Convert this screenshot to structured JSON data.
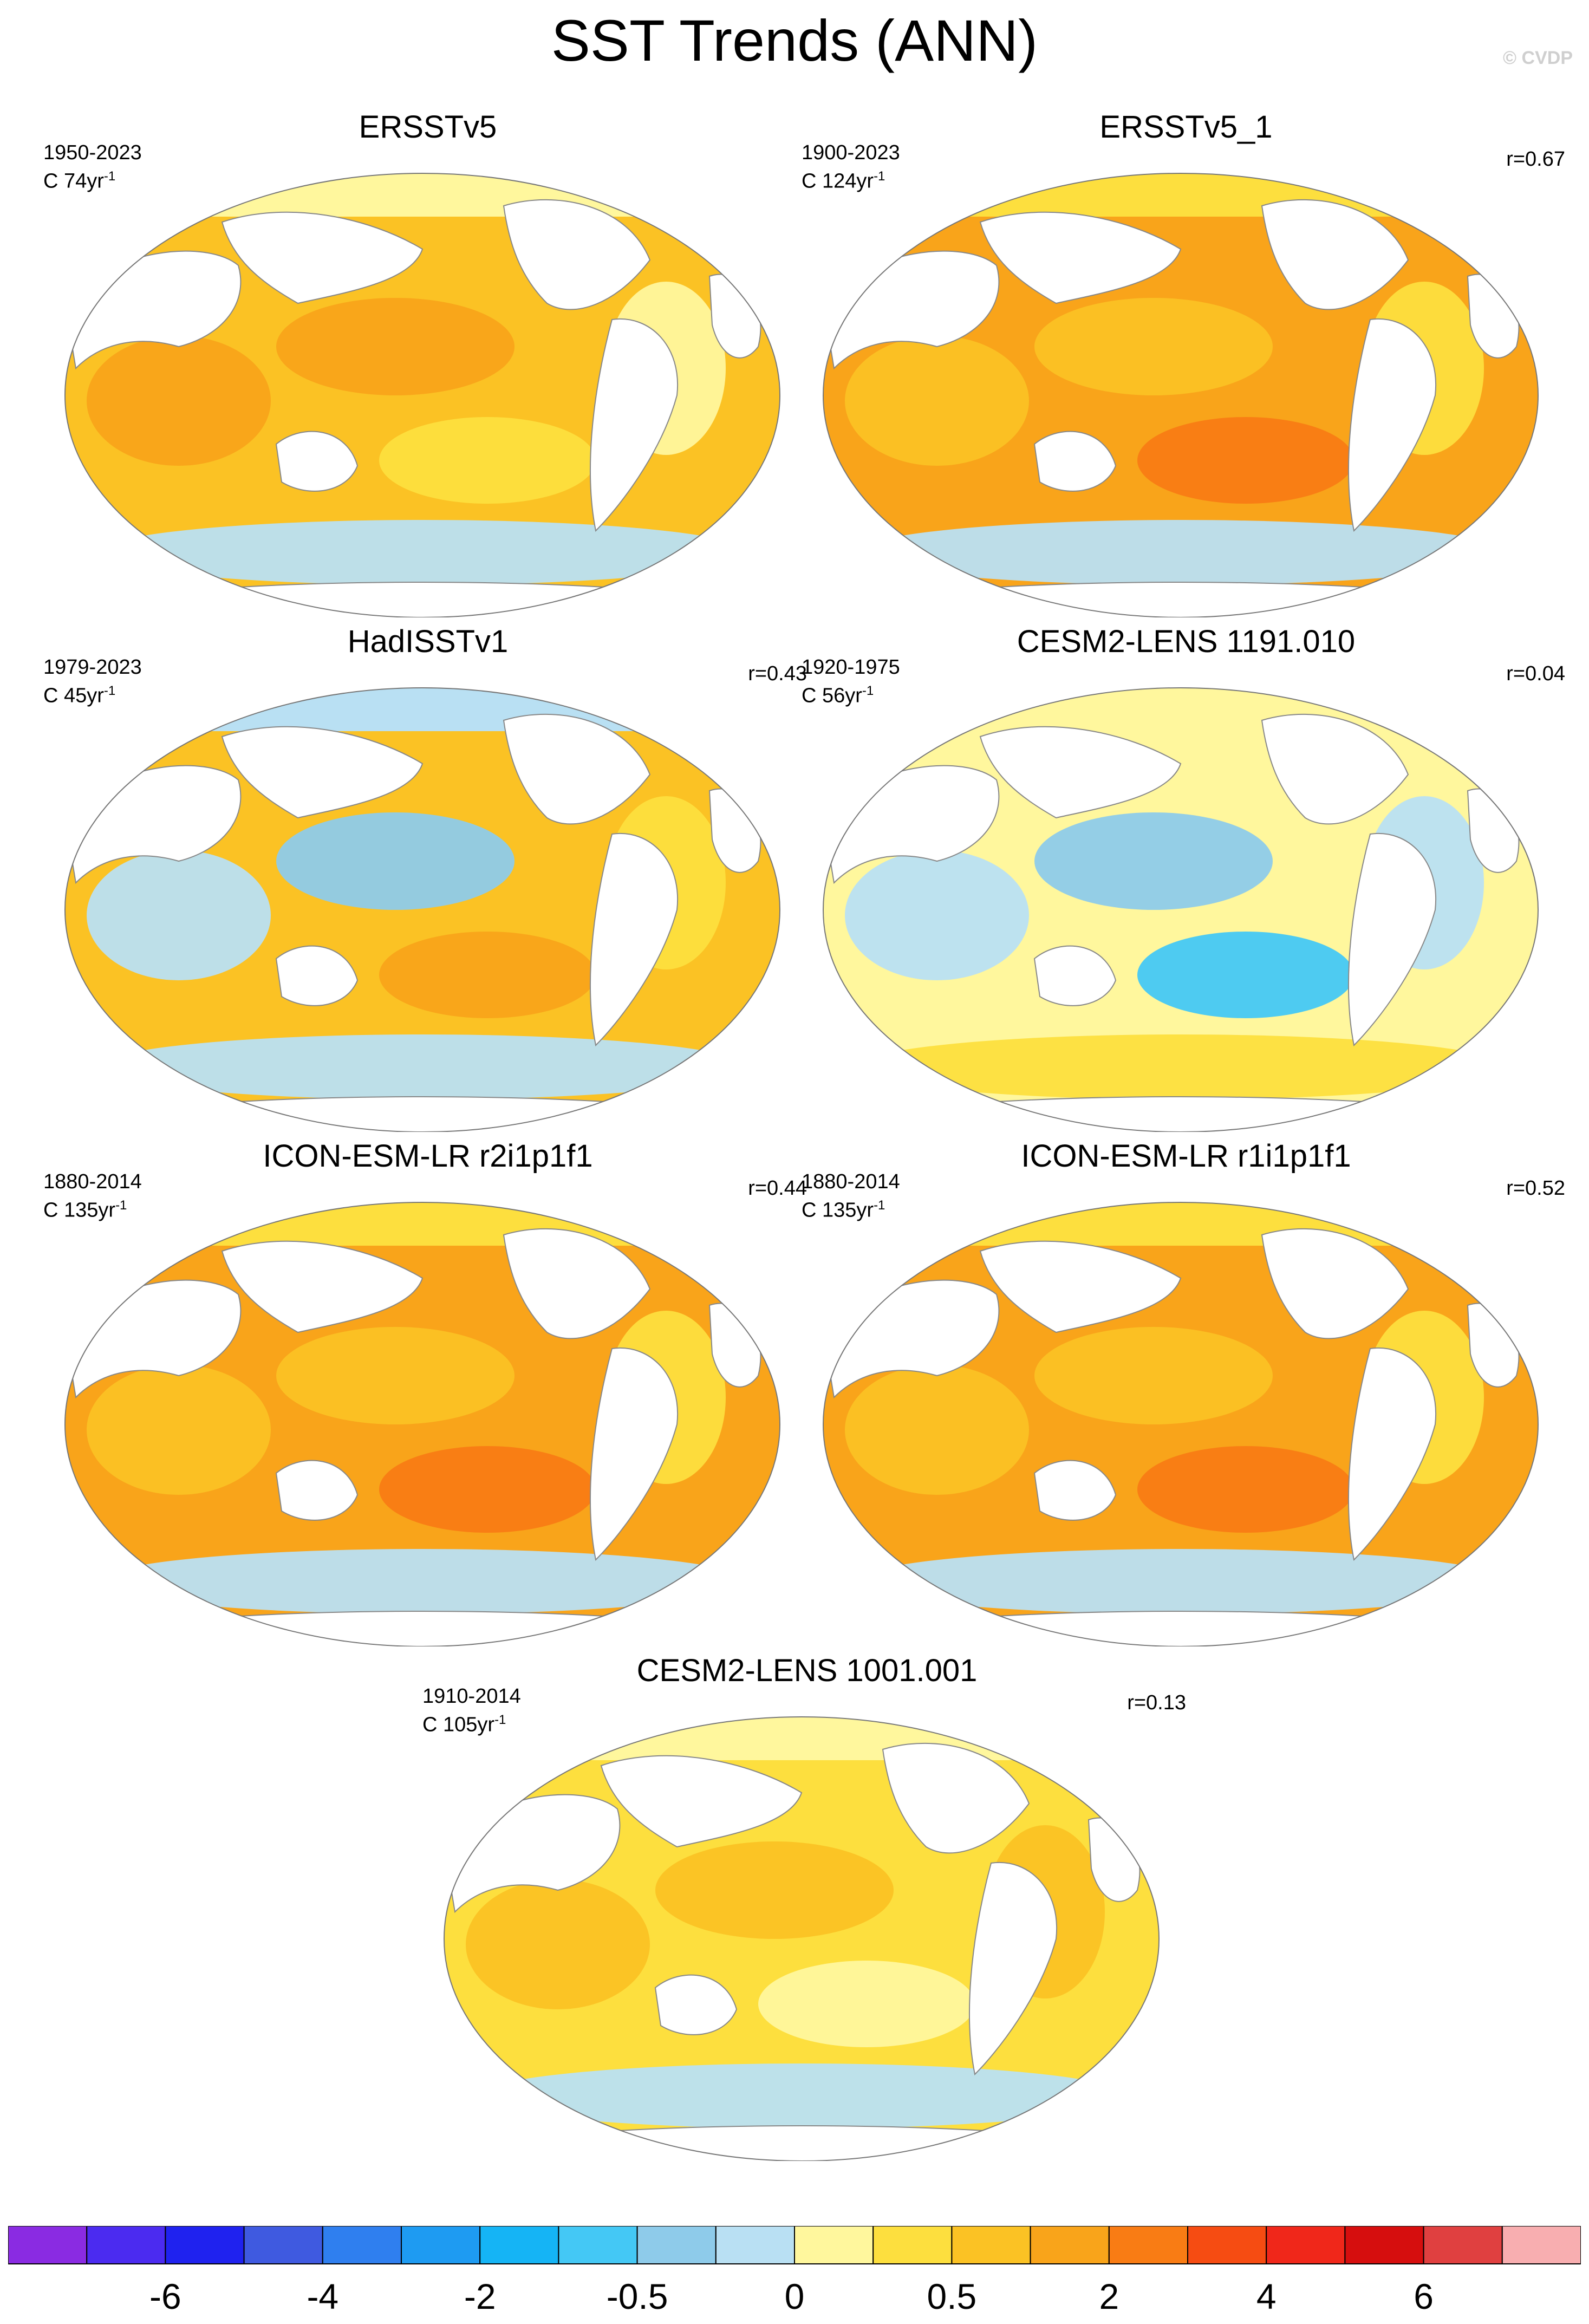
{
  "title": "SST Trends (ANN)",
  "copyright": "© CVDP",
  "panels": [
    {
      "title": "ERSSTv5",
      "years": "1950-2023",
      "count": "C 74yr",
      "count_sup": "-1",
      "corr": "",
      "pattern": "warm",
      "accent": "#fbb21a"
    },
    {
      "title": "ERSSTv5_1",
      "years": "1900-2023",
      "count": "C 124yr",
      "count_sup": "-1",
      "corr": "r=0.67",
      "pattern": "warm-strong",
      "accent": "#f9a41a"
    },
    {
      "title": "HadISSTv1",
      "years": "1979-2023",
      "count": "C 45yr",
      "count_sup": "-1",
      "corr": "r=0.43",
      "pattern": "mixed",
      "accent": "#fbb21a"
    },
    {
      "title": "CESM2-LENS 1191.010",
      "years": "1920-1975",
      "count": "C 56yr",
      "count_sup": "-1",
      "corr": "r=0.04",
      "pattern": "cool",
      "accent": "#fef49a"
    },
    {
      "title": "ICON-ESM-LR r2i1p1f1",
      "years": "1880-2014",
      "count": "C 135yr",
      "count_sup": "-1",
      "corr": "r=0.44",
      "pattern": "warm-strong",
      "accent": "#f9a41a"
    },
    {
      "title": "ICON-ESM-LR r1i1p1f1",
      "years": "1880-2014",
      "count": "C 135yr",
      "count_sup": "-1",
      "corr": "r=0.52",
      "pattern": "warm-strong",
      "accent": "#f9a41a"
    },
    {
      "title": "CESM2-LENS 1001.001",
      "years": "1910-2014",
      "count": "C 105yr",
      "count_sup": "-1",
      "corr": "r=0.13",
      "pattern": "warm-light",
      "accent": "#fcd43a"
    }
  ],
  "colorbar": {
    "colors": [
      "#8a2be2",
      "#4b2bf0",
      "#1f22ef",
      "#3f5ae0",
      "#2f7fef",
      "#1e9bf2",
      "#15b4f5",
      "#44c8f5",
      "#8ecbea",
      "#b9e0f3",
      "#fff79d",
      "#fddf3e",
      "#fbc224",
      "#f9a41a",
      "#f97c14",
      "#f64c12",
      "#f0271a",
      "#d60e0e",
      "#e04040",
      "#f8aeb0"
    ],
    "labels": [
      "-6",
      "-4",
      "-2",
      "-0.5",
      "0",
      "0.5",
      "2",
      "4",
      "6"
    ]
  }
}
